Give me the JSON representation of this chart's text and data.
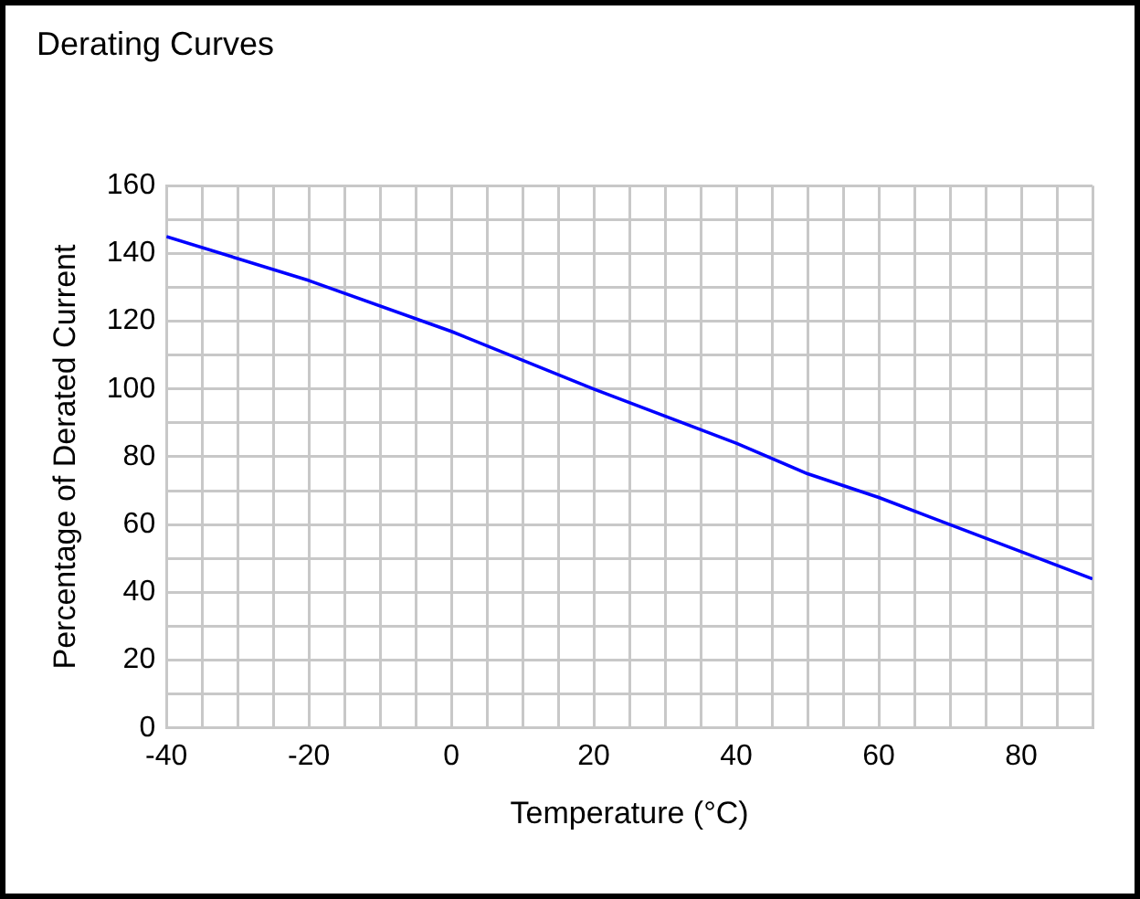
{
  "chart_data": {
    "type": "line",
    "title": "Derating Curves",
    "xlabel": "Temperature (°C)",
    "ylabel": "Percentage of Derated Current",
    "x": [
      -40,
      -20,
      0,
      20,
      40,
      50,
      60,
      80,
      90
    ],
    "series": [
      {
        "color": "#0000ff",
        "values": [
          145,
          132,
          117,
          100,
          84,
          75,
          68,
          52,
          44
        ]
      }
    ],
    "xlim": [
      -40,
      90
    ],
    "xticks": [
      -40,
      {
        "value": -35,
        "label": null
      },
      {
        "value": -30,
        "label": null
      },
      {
        "value": -25,
        "label": null
      },
      -20,
      {
        "value": -15,
        "label": null
      },
      {
        "value": -10,
        "label": null
      },
      {
        "value": -5,
        "label": null
      },
      0,
      {
        "value": 5,
        "label": null
      },
      {
        "value": 10,
        "label": null
      },
      {
        "value": 15,
        "label": null
      },
      20,
      {
        "value": 25,
        "label": null
      },
      {
        "value": 30,
        "label": null
      },
      {
        "value": 35,
        "label": null
      },
      40,
      {
        "value": 45,
        "label": null
      },
      {
        "value": 50,
        "label": null
      },
      {
        "value": 55,
        "label": null
      },
      60,
      {
        "value": 65,
        "label": null
      },
      {
        "value": 70,
        "label": null
      },
      {
        "value": 75,
        "label": null
      },
      80,
      {
        "value": 85,
        "label": null
      },
      {
        "value": 90,
        "label": null
      }
    ],
    "ylim": [
      0,
      160
    ],
    "yticks": [
      0,
      {
        "value": 10,
        "label": null
      },
      20,
      {
        "value": 30,
        "label": null
      },
      40,
      {
        "value": 50,
        "label": null
      },
      60,
      {
        "value": 70,
        "label": null
      },
      80,
      {
        "value": 90,
        "label": null
      },
      100,
      {
        "value": 110,
        "label": null
      },
      120,
      {
        "value": 130,
        "label": null
      },
      140,
      {
        "value": 150,
        "label": null
      },
      160
    ],
    "grid": true,
    "legend": false,
    "marker": "none",
    "line_style": "solid"
  }
}
